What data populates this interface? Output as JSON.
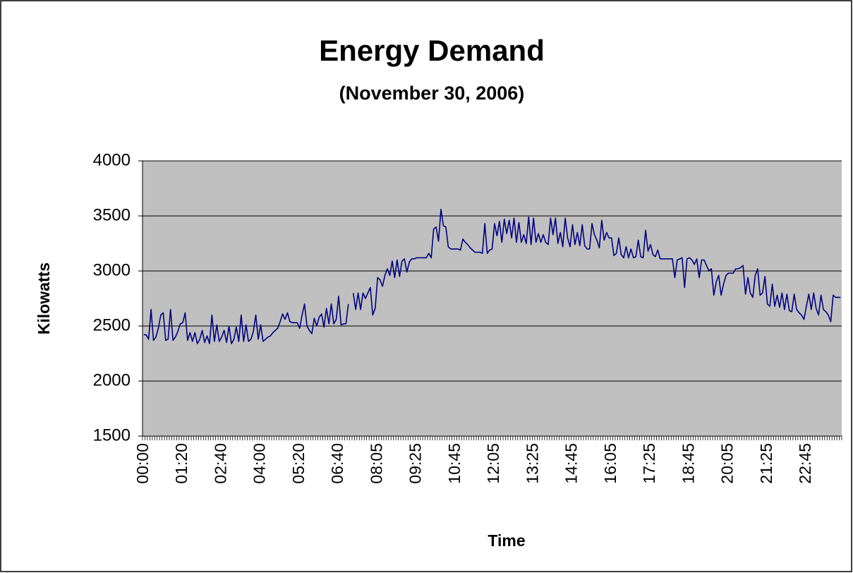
{
  "chart_data": {
    "type": "line",
    "title": "Energy Demand",
    "subtitle": "(November 30, 2006)",
    "x_label": "Time",
    "y_label": "Kilowatts",
    "ylim": [
      1500,
      4000
    ],
    "yticks": [
      1500,
      2000,
      2500,
      3000,
      3500,
      4000
    ],
    "grid": true,
    "categories": [
      "00:00",
      null,
      null,
      null,
      null,
      null,
      null,
      null,
      null,
      null,
      null,
      null,
      null,
      null,
      null,
      null,
      "01:20",
      null,
      null,
      null,
      null,
      null,
      null,
      null,
      null,
      null,
      null,
      null,
      null,
      null,
      null,
      null,
      "02:40",
      null,
      null,
      null,
      null,
      null,
      null,
      null,
      null,
      null,
      null,
      null,
      null,
      null,
      null,
      null,
      "04:00",
      null,
      null,
      null,
      null,
      null,
      null,
      null,
      null,
      null,
      null,
      null,
      null,
      null,
      null,
      null,
      "05:20",
      null,
      null,
      null,
      null,
      null,
      null,
      null,
      null,
      null,
      null,
      null,
      null,
      null,
      null,
      null,
      "06:40",
      null,
      null,
      null,
      null,
      null,
      null,
      null,
      null,
      null,
      null,
      null,
      null,
      null,
      null,
      null,
      "08:05",
      null,
      null,
      null,
      null,
      null,
      null,
      null,
      null,
      null,
      null,
      null,
      null,
      null,
      null,
      null,
      "09:25",
      null,
      null,
      null,
      null,
      null,
      null,
      null,
      null,
      null,
      null,
      null,
      null,
      null,
      null,
      null,
      "10:45",
      null,
      null,
      null,
      null,
      null,
      null,
      null,
      null,
      null,
      null,
      null,
      null,
      null,
      null,
      null,
      "12:05",
      null,
      null,
      null,
      null,
      null,
      null,
      null,
      null,
      null,
      null,
      null,
      null,
      null,
      null,
      null,
      "13:25",
      null,
      null,
      null,
      null,
      null,
      null,
      null,
      null,
      null,
      null,
      null,
      null,
      null,
      null,
      null,
      "14:45",
      null,
      null,
      null,
      null,
      null,
      null,
      null,
      null,
      null,
      null,
      null,
      null,
      null,
      null,
      null,
      "16:05",
      null,
      null,
      null,
      null,
      null,
      null,
      null,
      null,
      null,
      null,
      null,
      null,
      null,
      null,
      null,
      "17:25",
      null,
      null,
      null,
      null,
      null,
      null,
      null,
      null,
      null,
      null,
      null,
      null,
      null,
      null,
      null,
      "18:45",
      null,
      null,
      null,
      null,
      null,
      null,
      null,
      null,
      null,
      null,
      null,
      null,
      null,
      null,
      null,
      "20:05",
      null,
      null,
      null,
      null,
      null,
      null,
      null,
      null,
      null,
      null,
      null,
      null,
      null,
      null,
      null,
      "21:25",
      null,
      null,
      null,
      null,
      null,
      null,
      null,
      null,
      null,
      null,
      null,
      null,
      null,
      null,
      null,
      "22:45",
      null,
      null,
      null,
      null,
      null,
      null,
      null,
      null,
      null,
      null,
      null,
      null,
      null,
      null
    ],
    "series": [
      {
        "name": "Kilowatts",
        "color": "#000080",
        "values": [
          2420,
          2420,
          2380,
          2650,
          2370,
          2400,
          2480,
          2600,
          2620,
          2370,
          2380,
          2650,
          2370,
          2400,
          2450,
          2520,
          2530,
          2620,
          2370,
          2440,
          2360,
          2440,
          2340,
          2380,
          2460,
          2350,
          2410,
          2340,
          2600,
          2360,
          2510,
          2360,
          2400,
          2460,
          2350,
          2500,
          2340,
          2380,
          2490,
          2360,
          2600,
          2360,
          2510,
          2360,
          2380,
          2450,
          2600,
          2380,
          2510,
          2360,
          2380,
          2400,
          2410,
          2440,
          2460,
          2480,
          2540,
          2610,
          2560,
          2620,
          2540,
          2530,
          2530,
          2530,
          2480,
          2600,
          2700,
          2500,
          2460,
          2430,
          2570,
          2500,
          2580,
          2610,
          2490,
          2660,
          2520,
          2700,
          2520,
          2560,
          2770,
          2510,
          2520,
          2520,
          2700,
          null,
          2800,
          2650,
          2800,
          2650,
          2800,
          2750,
          2800,
          2850,
          2600,
          2660,
          2940,
          2920,
          2860,
          2960,
          3020,
          2960,
          3090,
          2940,
          3100,
          2950,
          3090,
          3110,
          2990,
          3080,
          3110,
          3110,
          3120,
          3120,
          3120,
          3120,
          3120,
          3160,
          3120,
          3380,
          3400,
          3270,
          3560,
          3410,
          3400,
          3220,
          3200,
          3200,
          3200,
          3200,
          3190,
          3290,
          3260,
          3240,
          3210,
          3190,
          3170,
          3170,
          3170,
          3160,
          3430,
          3160,
          3190,
          3200,
          3430,
          3320,
          3450,
          3260,
          3470,
          3340,
          3460,
          3300,
          3480,
          3260,
          3440,
          3260,
          3330,
          3250,
          3490,
          3240,
          3480,
          3260,
          3340,
          3260,
          3330,
          3260,
          3240,
          3480,
          3330,
          3480,
          3250,
          3350,
          3220,
          3480,
          3300,
          3220,
          3420,
          3240,
          3350,
          3230,
          3420,
          3230,
          3200,
          3200,
          3430,
          3330,
          3280,
          3210,
          3460,
          3280,
          3350,
          3300,
          3300,
          3140,
          3160,
          3300,
          3150,
          3120,
          3220,
          3120,
          3200,
          3120,
          3130,
          3280,
          3130,
          3120,
          3370,
          3180,
          3240,
          3150,
          3130,
          3190,
          3110,
          3110,
          3110,
          3110,
          3110,
          3110,
          2940,
          3100,
          3110,
          3120,
          2850,
          3110,
          3120,
          3100,
          3060,
          3110,
          2940,
          3100,
          3100,
          3050,
          3000,
          3020,
          2780,
          2900,
          2960,
          2780,
          2880,
          2960,
          2980,
          2980,
          2980,
          3020,
          3020,
          3030,
          3050,
          2790,
          2940,
          2800,
          2760,
          2960,
          3020,
          2780,
          2800,
          2950,
          2700,
          2680,
          2880,
          2680,
          2780,
          2670,
          2800,
          2650,
          2790,
          2640,
          2630,
          2790,
          2650,
          2620,
          2600,
          2560,
          2680,
          2790,
          2650,
          2800,
          2660,
          2600,
          2780,
          2650,
          2630,
          2600,
          2540,
          2780,
          2760,
          2760,
          2760
        ]
      }
    ]
  }
}
